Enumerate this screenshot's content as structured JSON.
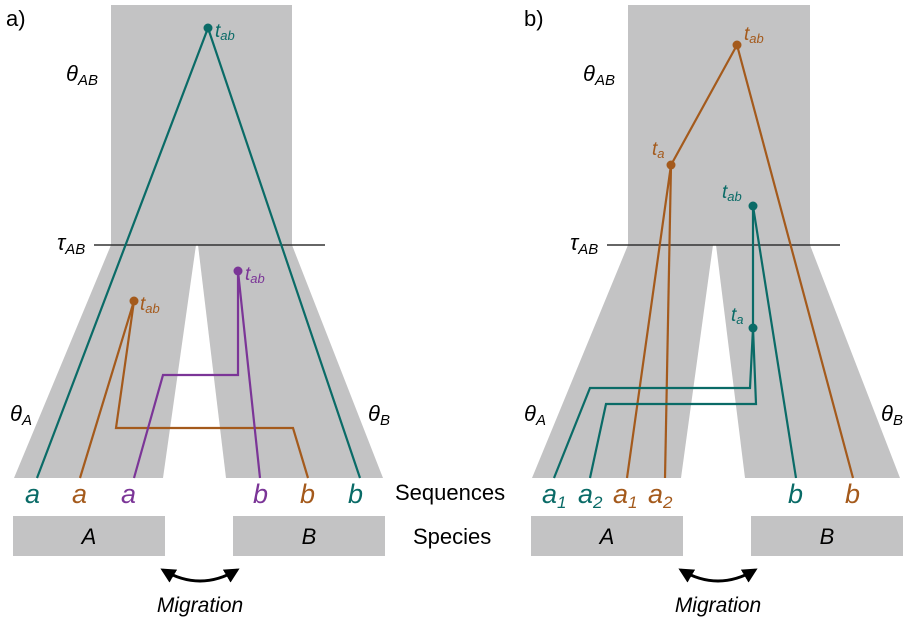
{
  "colors": {
    "teal": "#0a6b67",
    "brown": "#a45a1c",
    "purple": "#7b3597",
    "gray": "#c3c3c4",
    "black": "#000000"
  },
  "panel_a": {
    "label": "a)",
    "theta_ab": "θAB",
    "theta_a": "θA",
    "theta_b": "θB",
    "tau_ab": "τAB",
    "t_ab": "tab",
    "tips": [
      "a",
      "a",
      "a",
      "b",
      "b",
      "b"
    ],
    "species_a": "A",
    "species_b": "B",
    "migration": "Migration"
  },
  "panel_b": {
    "label": "b)",
    "theta_ab": "θAB",
    "theta_a": "θA",
    "theta_b": "θB",
    "tau_ab": "τAB",
    "t_ab": "tab",
    "t_a": "ta",
    "tips": [
      "a1",
      "a2",
      "a1",
      "a2",
      "b",
      "b"
    ],
    "species_a": "A",
    "species_b": "B",
    "migration": "Migration"
  },
  "row_labels": {
    "sequences": "Sequences",
    "species": "Species"
  }
}
